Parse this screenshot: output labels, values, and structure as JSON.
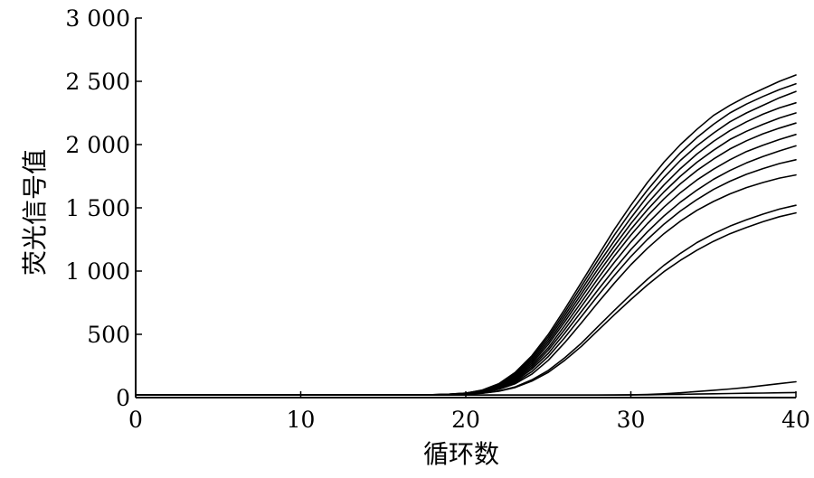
{
  "chart_data": {
    "type": "line",
    "title": "",
    "xlabel": "循环数",
    "ylabel": "荧光信号值",
    "xlim": [
      0,
      40
    ],
    "ylim": [
      0,
      3000
    ],
    "x_ticks": [
      0,
      10,
      20,
      30,
      40
    ],
    "x_tick_labels": [
      "0",
      "10",
      "20",
      "30",
      "40"
    ],
    "y_ticks": [
      0,
      500,
      1000,
      1500,
      2000,
      2500,
      3000
    ],
    "y_tick_labels": [
      "0",
      "500",
      "1 000",
      "1 500",
      "2 000",
      "2 500",
      "3 000"
    ],
    "grid": false,
    "legend": "none",
    "line_color": "#000000",
    "x": [
      0,
      1,
      2,
      3,
      4,
      5,
      6,
      7,
      8,
      9,
      10,
      11,
      12,
      13,
      14,
      15,
      16,
      17,
      18,
      19,
      20,
      21,
      22,
      23,
      24,
      25,
      26,
      27,
      28,
      29,
      30,
      31,
      32,
      33,
      34,
      35,
      36,
      37,
      38,
      39,
      40
    ],
    "series": [
      {
        "values": [
          20,
          20,
          20,
          20,
          20,
          20,
          20,
          20,
          20,
          20,
          20,
          20,
          20,
          20,
          20,
          20,
          20,
          21,
          23,
          27,
          35,
          60,
          110,
          200,
          330,
          500,
          700,
          910,
          1120,
          1330,
          1520,
          1700,
          1860,
          2000,
          2120,
          2230,
          2310,
          2380,
          2440,
          2500,
          2550
        ]
      },
      {
        "values": [
          20,
          20,
          20,
          20,
          20,
          20,
          20,
          20,
          20,
          20,
          20,
          20,
          20,
          20,
          20,
          20,
          20,
          21,
          23,
          27,
          35,
          58,
          105,
          190,
          315,
          480,
          675,
          880,
          1085,
          1285,
          1470,
          1640,
          1795,
          1935,
          2055,
          2160,
          2250,
          2320,
          2380,
          2435,
          2480
        ]
      },
      {
        "values": [
          20,
          20,
          20,
          20,
          20,
          20,
          20,
          20,
          20,
          20,
          20,
          20,
          20,
          20,
          20,
          20,
          20,
          21,
          23,
          26,
          34,
          55,
          100,
          180,
          300,
          460,
          650,
          850,
          1050,
          1240,
          1420,
          1590,
          1740,
          1875,
          1990,
          2090,
          2180,
          2250,
          2310,
          2370,
          2420
        ]
      },
      {
        "values": [
          20,
          20,
          20,
          20,
          20,
          20,
          20,
          20,
          20,
          20,
          20,
          20,
          20,
          20,
          20,
          20,
          20,
          21,
          22,
          26,
          33,
          52,
          95,
          170,
          285,
          440,
          625,
          820,
          1015,
          1200,
          1375,
          1535,
          1680,
          1810,
          1925,
          2025,
          2110,
          2180,
          2240,
          2290,
          2330
        ]
      },
      {
        "values": [
          20,
          20,
          20,
          20,
          20,
          20,
          20,
          20,
          20,
          20,
          20,
          20,
          20,
          20,
          20,
          20,
          20,
          21,
          22,
          26,
          33,
          50,
          90,
          160,
          270,
          420,
          600,
          790,
          980,
          1160,
          1330,
          1485,
          1625,
          1750,
          1860,
          1955,
          2040,
          2105,
          2160,
          2210,
          2250
        ]
      },
      {
        "values": [
          20,
          20,
          20,
          20,
          20,
          20,
          20,
          20,
          20,
          20,
          20,
          20,
          20,
          20,
          20,
          20,
          20,
          21,
          22,
          25,
          32,
          48,
          85,
          150,
          255,
          395,
          570,
          755,
          940,
          1120,
          1285,
          1435,
          1570,
          1690,
          1795,
          1885,
          1965,
          2030,
          2085,
          2130,
          2170
        ]
      },
      {
        "values": [
          20,
          20,
          20,
          20,
          20,
          20,
          20,
          20,
          20,
          20,
          20,
          20,
          20,
          20,
          20,
          20,
          20,
          21,
          22,
          25,
          31,
          46,
          80,
          140,
          240,
          375,
          540,
          720,
          900,
          1070,
          1230,
          1375,
          1505,
          1620,
          1720,
          1805,
          1880,
          1945,
          1995,
          2040,
          2080
        ]
      },
      {
        "values": [
          20,
          20,
          20,
          20,
          20,
          20,
          20,
          20,
          20,
          20,
          20,
          20,
          20,
          20,
          20,
          20,
          20,
          21,
          22,
          25,
          31,
          44,
          75,
          130,
          225,
          350,
          510,
          680,
          850,
          1015,
          1170,
          1310,
          1435,
          1545,
          1640,
          1725,
          1795,
          1855,
          1905,
          1950,
          1990
        ]
      },
      {
        "values": [
          20,
          20,
          20,
          20,
          20,
          20,
          20,
          20,
          20,
          20,
          20,
          20,
          20,
          20,
          20,
          20,
          20,
          21,
          22,
          24,
          30,
          42,
          70,
          120,
          205,
          325,
          475,
          640,
          805,
          965,
          1115,
          1250,
          1370,
          1475,
          1565,
          1645,
          1710,
          1765,
          1810,
          1850,
          1880
        ]
      },
      {
        "values": [
          20,
          20,
          20,
          20,
          20,
          20,
          20,
          20,
          20,
          20,
          20,
          20,
          20,
          20,
          20,
          20,
          20,
          21,
          22,
          24,
          29,
          40,
          65,
          110,
          185,
          295,
          435,
          590,
          750,
          905,
          1050,
          1180,
          1295,
          1395,
          1480,
          1550,
          1610,
          1660,
          1700,
          1735,
          1760
        ]
      },
      {
        "values": [
          20,
          20,
          20,
          20,
          20,
          20,
          20,
          20,
          20,
          20,
          20,
          20,
          20,
          20,
          20,
          20,
          20,
          21,
          21,
          23,
          27,
          35,
          52,
          85,
          140,
          215,
          315,
          430,
          560,
          690,
          815,
          935,
          1045,
          1140,
          1225,
          1295,
          1355,
          1405,
          1450,
          1490,
          1520
        ]
      },
      {
        "values": [
          20,
          20,
          20,
          20,
          20,
          20,
          20,
          20,
          20,
          20,
          20,
          20,
          20,
          20,
          20,
          20,
          20,
          21,
          21,
          23,
          27,
          34,
          50,
          80,
          130,
          200,
          295,
          405,
          530,
          655,
          775,
          890,
          995,
          1085,
          1165,
          1235,
          1295,
          1345,
          1390,
          1430,
          1460
        ]
      },
      {
        "values": [
          20,
          20,
          20,
          20,
          20,
          20,
          20,
          20,
          20,
          20,
          20,
          20,
          20,
          20,
          20,
          20,
          20,
          20,
          20,
          20,
          20,
          20,
          20,
          20,
          20,
          20,
          20,
          20,
          20,
          21,
          22,
          25,
          30,
          38,
          48,
          58,
          68,
          80,
          95,
          110,
          125
        ]
      },
      {
        "values": [
          20,
          20,
          20,
          20,
          20,
          20,
          20,
          20,
          20,
          20,
          20,
          20,
          20,
          20,
          20,
          20,
          20,
          20,
          20,
          20,
          20,
          20,
          20,
          20,
          20,
          20,
          20,
          20,
          20,
          20,
          21,
          22,
          24,
          26,
          28,
          30,
          32,
          34,
          36,
          38,
          40
        ]
      }
    ]
  }
}
